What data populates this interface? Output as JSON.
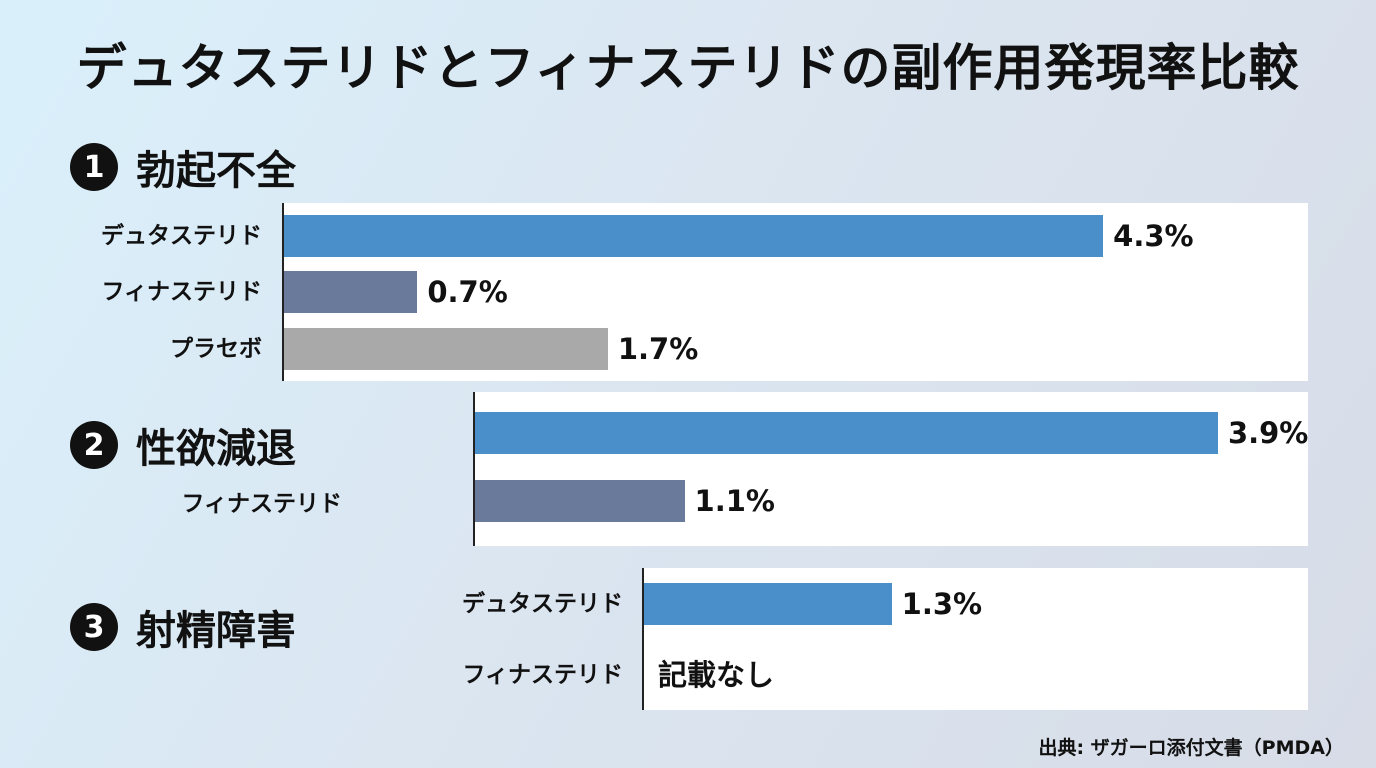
{
  "title": "デュタステリドとフィナステリドの副作用発現率比較",
  "source": "出典: ザガーロ添付文書（PMDA）",
  "colors": {
    "dutasteride": "#4a8fc9",
    "finasteride": "#6a7a9b",
    "placebo": "#a9a9a9"
  },
  "chart_data": [
    {
      "type": "bar",
      "section_number": "1",
      "title": "勃起不全",
      "categories": [
        "デュタステリド",
        "フィナステリド",
        "プラセボ"
      ],
      "values": [
        4.3,
        0.7,
        1.7
      ],
      "value_labels": [
        "4.3%",
        "0.7%",
        "1.7%"
      ],
      "orientation": "horizontal"
    },
    {
      "type": "bar",
      "section_number": "2",
      "title": "性欲減退",
      "categories": [
        "",
        "フィナステリド"
      ],
      "values": [
        3.9,
        1.1
      ],
      "value_labels": [
        "3.9%",
        "1.1%"
      ],
      "orientation": "horizontal"
    },
    {
      "type": "bar",
      "section_number": "3",
      "title": "射精障害",
      "categories": [
        "デュタステリド",
        "フィナステリド"
      ],
      "values": [
        1.3,
        null
      ],
      "value_labels": [
        "1.3%",
        ""
      ],
      "note": "記載なし",
      "orientation": "horizontal"
    }
  ]
}
